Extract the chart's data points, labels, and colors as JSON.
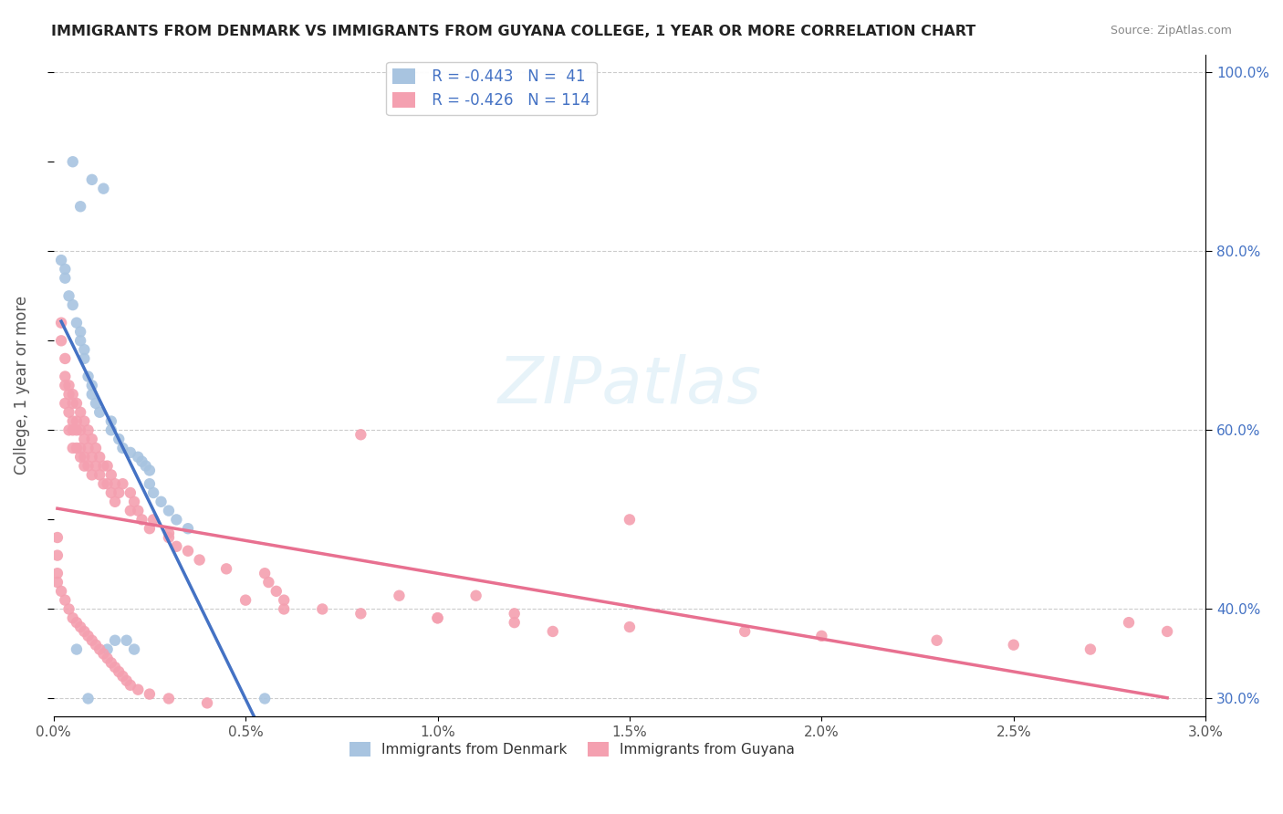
{
  "title": "IMMIGRANTS FROM DENMARK VS IMMIGRANTS FROM GUYANA COLLEGE, 1 YEAR OR MORE CORRELATION CHART",
  "source": "Source: ZipAtlas.com",
  "ylabel": "College, 1 year or more",
  "xlabel_ticks": [
    "0.0%",
    "0.5%",
    "1.0%",
    "1.5%",
    "2.0%",
    "2.5%",
    "3.0%"
  ],
  "ylabel_ticks_left": [
    "",
    "",
    "",
    "",
    "",
    "",
    "",
    "",
    "",
    "",
    ""
  ],
  "ylabel_ticks_right": [
    "30.0%",
    "40.0%",
    "60.0%",
    "80.0%",
    "100.0%"
  ],
  "xlim": [
    0.0,
    0.03
  ],
  "ylim": [
    0.28,
    1.02
  ],
  "denmark_color": "#a8c4e0",
  "guyana_color": "#f4a0b0",
  "denmark_line_color": "#4472c4",
  "guyana_line_color": "#e87090",
  "legend_r_denmark": "R = -0.443",
  "legend_n_denmark": "N =  41",
  "legend_r_guyana": "R = -0.426",
  "legend_n_guyana": "N = 114",
  "legend_label_denmark": "Immigrants from Denmark",
  "legend_label_guyana": "Immigrants from Guyana",
  "watermark": "ZIPatlas",
  "denmark_x": [
    0.0005,
    0.0007,
    0.001,
    0.0013,
    0.0002,
    0.0003,
    0.0003,
    0.0004,
    0.0005,
    0.0006,
    0.0007,
    0.0007,
    0.0008,
    0.0008,
    0.0009,
    0.001,
    0.001,
    0.0011,
    0.0012,
    0.0015,
    0.0015,
    0.0017,
    0.0018,
    0.002,
    0.0022,
    0.0023,
    0.0024,
    0.0025,
    0.0025,
    0.0026,
    0.0028,
    0.003,
    0.0032,
    0.0035,
    0.0016,
    0.0019,
    0.0021,
    0.0006,
    0.0014,
    0.0009,
    0.0055
  ],
  "denmark_y": [
    0.9,
    0.85,
    0.88,
    0.87,
    0.79,
    0.78,
    0.77,
    0.75,
    0.74,
    0.72,
    0.71,
    0.7,
    0.69,
    0.68,
    0.66,
    0.65,
    0.64,
    0.63,
    0.62,
    0.61,
    0.6,
    0.59,
    0.58,
    0.575,
    0.57,
    0.565,
    0.56,
    0.555,
    0.54,
    0.53,
    0.52,
    0.51,
    0.5,
    0.49,
    0.365,
    0.365,
    0.355,
    0.355,
    0.355,
    0.3,
    0.3
  ],
  "guyana_x": [
    0.0002,
    0.0002,
    0.0003,
    0.0003,
    0.0003,
    0.0003,
    0.0004,
    0.0004,
    0.0004,
    0.0004,
    0.0005,
    0.0005,
    0.0005,
    0.0005,
    0.0005,
    0.0006,
    0.0006,
    0.0006,
    0.0006,
    0.0007,
    0.0007,
    0.0007,
    0.0007,
    0.0008,
    0.0008,
    0.0008,
    0.0008,
    0.0009,
    0.0009,
    0.0009,
    0.001,
    0.001,
    0.001,
    0.0011,
    0.0011,
    0.0012,
    0.0012,
    0.0013,
    0.0013,
    0.0014,
    0.0014,
    0.0015,
    0.0015,
    0.0016,
    0.0016,
    0.0017,
    0.0018,
    0.002,
    0.002,
    0.0021,
    0.0022,
    0.0023,
    0.0025,
    0.0026,
    0.003,
    0.003,
    0.0032,
    0.0035,
    0.0038,
    0.0045,
    0.0055,
    0.0056,
    0.0058,
    0.006,
    0.007,
    0.008,
    0.009,
    0.01,
    0.011,
    0.012,
    0.013,
    0.015,
    0.0001,
    0.0001,
    0.0001,
    0.0001,
    0.0002,
    0.0003,
    0.0004,
    0.0005,
    0.0006,
    0.0007,
    0.0008,
    0.0009,
    0.001,
    0.0011,
    0.0012,
    0.0013,
    0.0014,
    0.0015,
    0.0016,
    0.0017,
    0.0018,
    0.0019,
    0.002,
    0.0022,
    0.0025,
    0.003,
    0.004,
    0.005,
    0.006,
    0.008,
    0.01,
    0.012,
    0.015,
    0.018,
    0.02,
    0.023,
    0.025,
    0.027,
    0.028,
    0.029
  ],
  "guyana_y": [
    0.72,
    0.7,
    0.68,
    0.66,
    0.65,
    0.63,
    0.65,
    0.64,
    0.62,
    0.6,
    0.64,
    0.63,
    0.61,
    0.6,
    0.58,
    0.63,
    0.61,
    0.6,
    0.58,
    0.62,
    0.6,
    0.58,
    0.57,
    0.61,
    0.59,
    0.57,
    0.56,
    0.6,
    0.58,
    0.56,
    0.59,
    0.57,
    0.55,
    0.58,
    0.56,
    0.57,
    0.55,
    0.56,
    0.54,
    0.56,
    0.54,
    0.55,
    0.53,
    0.54,
    0.52,
    0.53,
    0.54,
    0.53,
    0.51,
    0.52,
    0.51,
    0.5,
    0.49,
    0.5,
    0.485,
    0.48,
    0.47,
    0.465,
    0.455,
    0.445,
    0.44,
    0.43,
    0.42,
    0.41,
    0.4,
    0.595,
    0.415,
    0.39,
    0.415,
    0.395,
    0.375,
    0.5,
    0.48,
    0.46,
    0.44,
    0.43,
    0.42,
    0.41,
    0.4,
    0.39,
    0.385,
    0.38,
    0.375,
    0.37,
    0.365,
    0.36,
    0.355,
    0.35,
    0.345,
    0.34,
    0.335,
    0.33,
    0.325,
    0.32,
    0.315,
    0.31,
    0.305,
    0.3,
    0.295,
    0.41,
    0.4,
    0.395,
    0.39,
    0.385,
    0.38,
    0.375,
    0.37,
    0.365,
    0.36,
    0.355,
    0.385,
    0.375
  ]
}
